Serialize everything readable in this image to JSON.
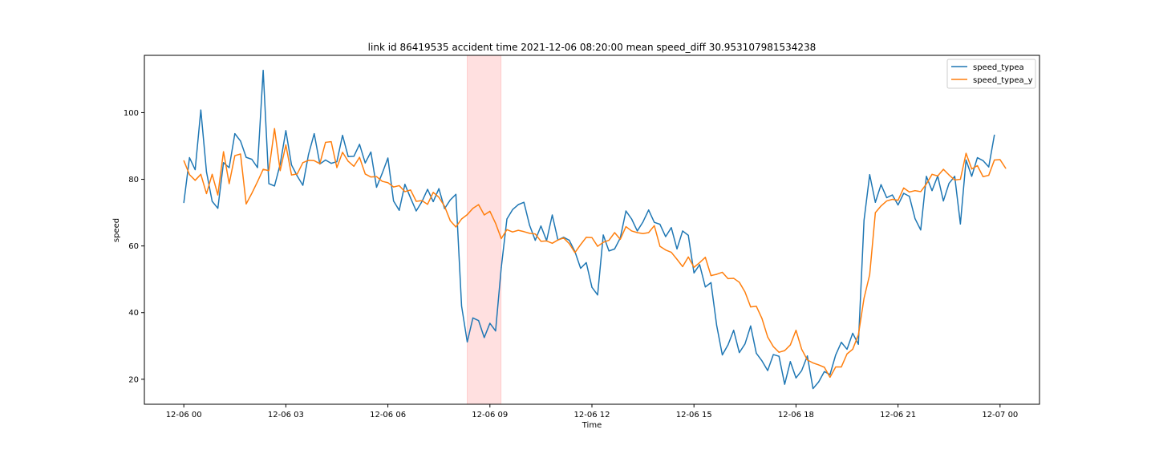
{
  "chart_data": {
    "type": "line",
    "title": "link id 86419535 accident time 2021-12-06 08:20:00 mean speed_diff 30.953107981534238",
    "xlabel": "Time",
    "ylabel": "speed",
    "x_unit": "hours",
    "xlim": [
      -1.16,
      25.16
    ],
    "ylim": [
      12.5,
      117.2
    ],
    "x_ticks": [
      0,
      3,
      6,
      9,
      12,
      15,
      18,
      21,
      24
    ],
    "x_tick_labels": [
      "12-06 00",
      "12-06 03",
      "12-06 06",
      "12-06 09",
      "12-06 12",
      "12-06 15",
      "12-06 18",
      "12-06 21",
      "12-07 00"
    ],
    "y_ticks": [
      20,
      40,
      60,
      80,
      100
    ],
    "y_tick_labels": [
      "20",
      "40",
      "60",
      "80",
      "100"
    ],
    "highlight": {
      "x_start": 8.33,
      "x_end": 9.33,
      "color": "#ffe0e0"
    },
    "grid": false,
    "legend_position": "upper right",
    "x_step_hours": 0.16667,
    "series": [
      {
        "name": "speed_typea",
        "color": "#1f77b4",
        "values": [
          73.0,
          86.5,
          82.9,
          100.8,
          82.2,
          73.4,
          71.3,
          85.0,
          83.5,
          93.7,
          91.5,
          86.6,
          86.0,
          83.5,
          112.7,
          78.7,
          78.0,
          84.5,
          94.6,
          84.3,
          81.0,
          78.2,
          87.5,
          93.7,
          84.6,
          85.8,
          84.8,
          85.3,
          93.2,
          86.8,
          86.9,
          90.5,
          84.9,
          88.2,
          77.6,
          81.8,
          86.4,
          73.5,
          70.7,
          78.5,
          74.4,
          70.5,
          73.3,
          77.0,
          73.3,
          77.2,
          71.2,
          73.8,
          75.5,
          42.0,
          31.2,
          38.4,
          37.6,
          32.5,
          36.8,
          34.5,
          53.5,
          68.1,
          70.9,
          72.4,
          73.1,
          66.2,
          61.7,
          66.0,
          61.6,
          69.3,
          61.8,
          62.6,
          61.7,
          58.3,
          53.3,
          55.0,
          47.6,
          45.3,
          63.3,
          58.5,
          59.1,
          62.4,
          70.5,
          68.1,
          64.5,
          67.2,
          70.8,
          67.1,
          66.5,
          62.8,
          65.5,
          59.1,
          64.5,
          63.2,
          51.9,
          54.4,
          47.7,
          49.0,
          36.2,
          27.3,
          30.3,
          34.7,
          28.0,
          30.6,
          36.0,
          27.8,
          25.5,
          22.6,
          27.4,
          26.9,
          18.5,
          25.3,
          20.4,
          22.6,
          27.0,
          17.2,
          19.2,
          22.3,
          21.4,
          27.3,
          31.1,
          29.0,
          33.8,
          30.5,
          67.7,
          81.4,
          73.1,
          78.4,
          74.5,
          75.3,
          72.3,
          75.8,
          74.9,
          68.2,
          64.8,
          80.9,
          76.6,
          81.0,
          73.5,
          78.8,
          80.9,
          66.6,
          85.8,
          80.9,
          86.5,
          85.6,
          83.7,
          93.3
        ]
      },
      {
        "name": "speed_typea_y",
        "color": "#ff7f0e",
        "values": [
          85.6,
          81.4,
          79.7,
          81.5,
          75.7,
          81.5,
          75.3,
          88.3,
          78.7,
          87.1,
          87.6,
          72.6,
          75.8,
          79.3,
          83.0,
          82.6,
          95.2,
          82.6,
          90.3,
          81.3,
          81.6,
          85.0,
          85.7,
          85.6,
          84.7,
          91.1,
          91.3,
          83.5,
          88.1,
          85.4,
          83.9,
          86.6,
          81.6,
          80.7,
          80.8,
          79.4,
          79.0,
          77.7,
          78.1,
          76.3,
          76.8,
          73.4,
          73.6,
          72.5,
          76.1,
          74.6,
          71.9,
          67.6,
          65.7,
          68.1,
          69.4,
          71.3,
          72.4,
          69.3,
          70.4,
          66.8,
          62.2,
          64.9,
          64.2,
          64.7,
          64.3,
          63.8,
          63.6,
          61.4,
          61.5,
          60.8,
          61.8,
          62.4,
          60.7,
          58.0,
          60.4,
          62.6,
          62.5,
          59.9,
          61.1,
          61.7,
          64.0,
          62.0,
          65.8,
          64.5,
          64.0,
          63.7,
          64.0,
          66.1,
          59.9,
          58.8,
          58.1,
          56.0,
          53.8,
          56.7,
          53.6,
          55.0,
          56.6,
          51.1,
          51.5,
          52.1,
          50.2,
          50.3,
          49.1,
          46.2,
          41.7,
          41.9,
          38.2,
          32.7,
          29.8,
          28.1,
          28.6,
          30.3,
          34.7,
          29.0,
          25.8,
          24.9,
          24.3,
          23.6,
          20.6,
          23.7,
          23.7,
          27.6,
          29.0,
          33.3,
          44.3,
          51.4,
          70.0,
          72.0,
          73.5,
          74.0,
          73.7,
          77.4,
          76.2,
          76.6,
          76.3,
          78.6,
          81.5,
          81.0,
          83.0,
          81.3,
          79.8,
          80.0,
          87.8,
          83.1,
          84.1,
          80.8,
          81.2,
          85.8,
          85.9,
          83.3
        ]
      }
    ]
  }
}
